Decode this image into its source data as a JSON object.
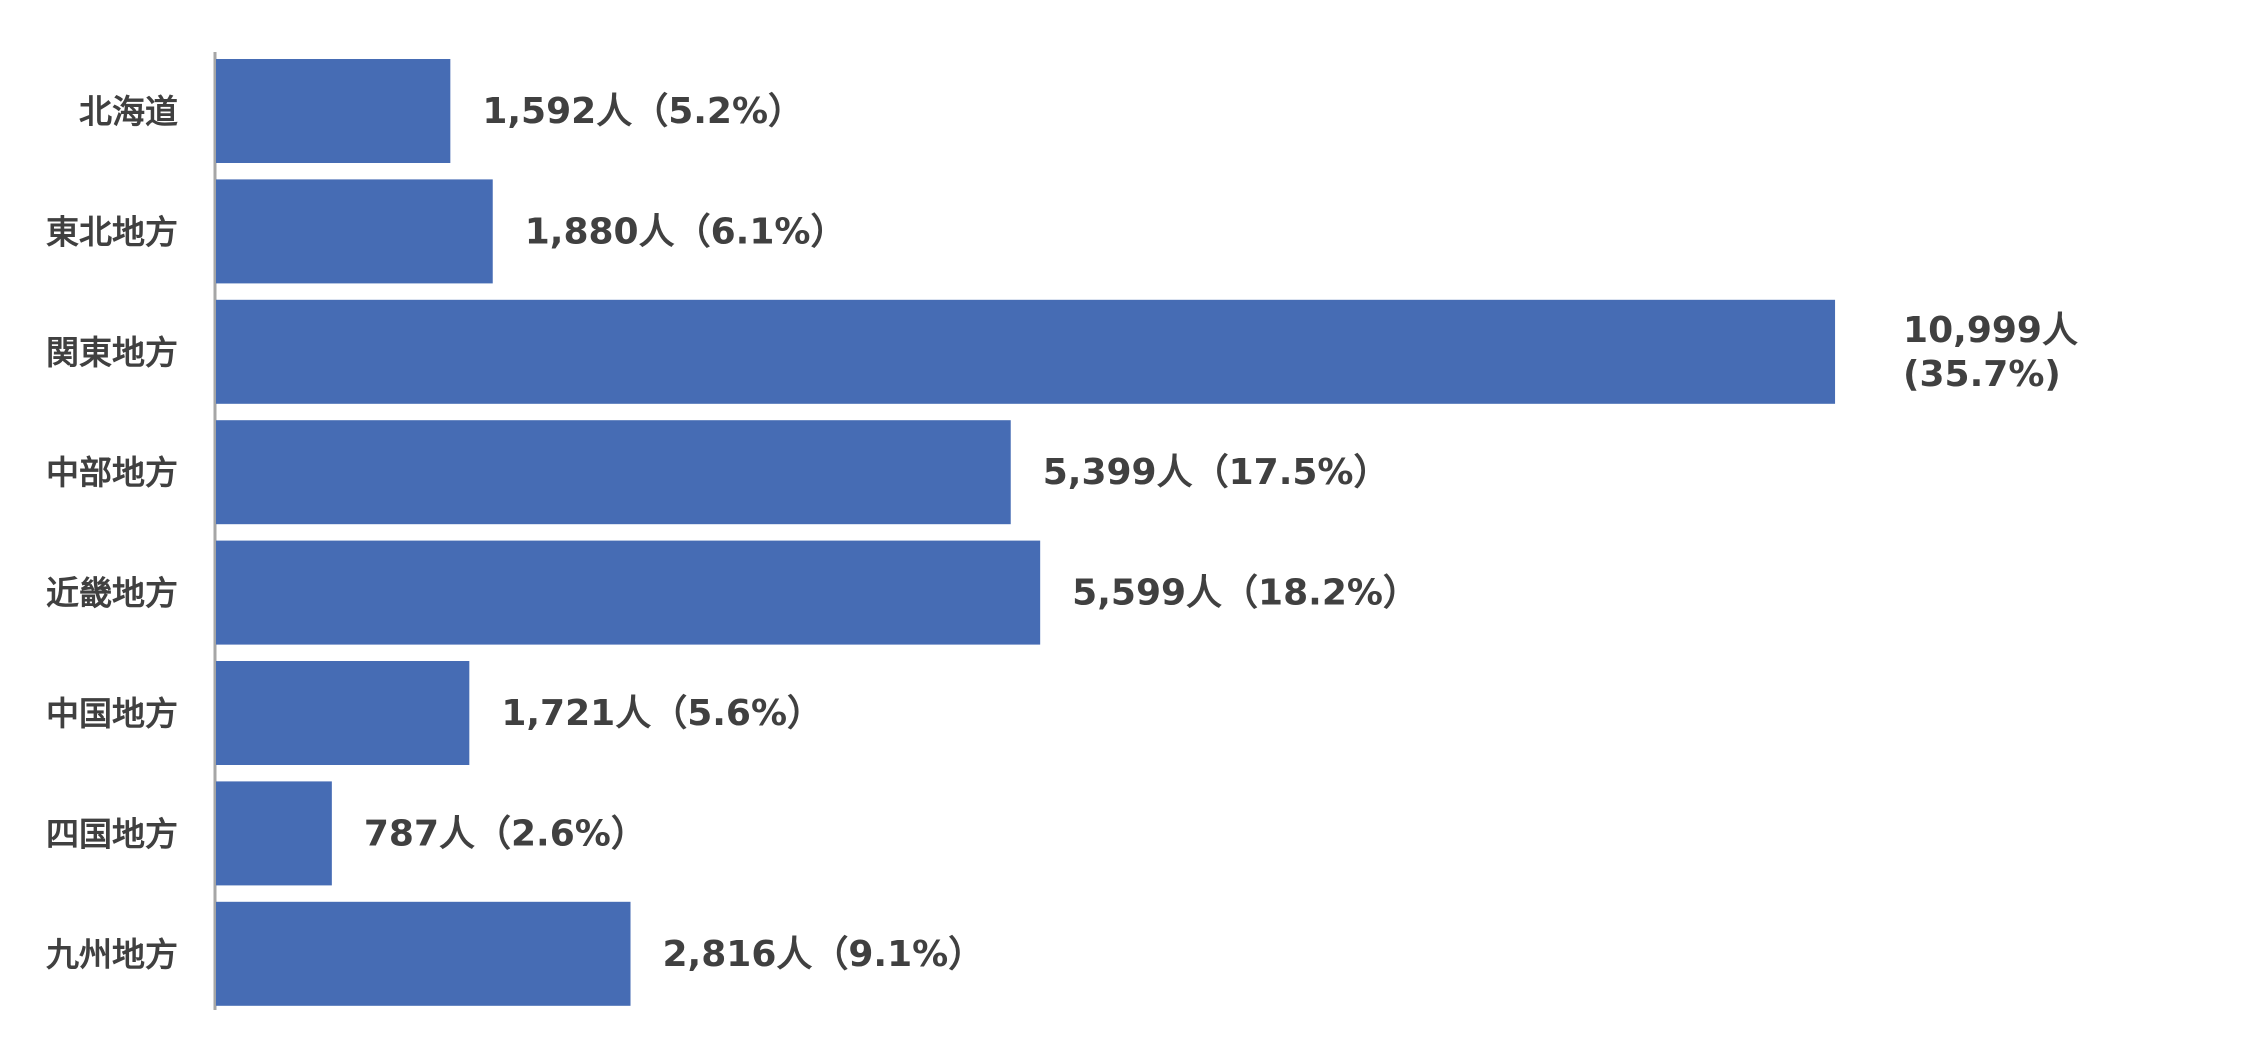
{
  "chart_data": {
    "type": "bar",
    "orientation": "horizontal",
    "title": "",
    "xlabel": "",
    "ylabel": "",
    "categories": [
      "北海道",
      "東北地方",
      "関東地方",
      "中部地方",
      "近畿地方",
      "中国地方",
      "四国地方",
      "九州地方"
    ],
    "values": [
      1592,
      1880,
      10999,
      5399,
      5599,
      1721,
      787,
      2816
    ],
    "data_labels": [
      "1,592人（5.2%）",
      "1,880人（6.1%）",
      "10,999人\n(35.7%)",
      "5,399人（17.5%）",
      "5,599人（18.2%）",
      "1,721人（5.6%）",
      "787人（2.6%）",
      "2,816人（9.1%）"
    ],
    "xlim": [
      0,
      11000
    ],
    "grid": false,
    "legend": "none",
    "colors": {
      "bar": "#466CB4",
      "axis": "#A6A6A6",
      "text": "#404040"
    }
  }
}
